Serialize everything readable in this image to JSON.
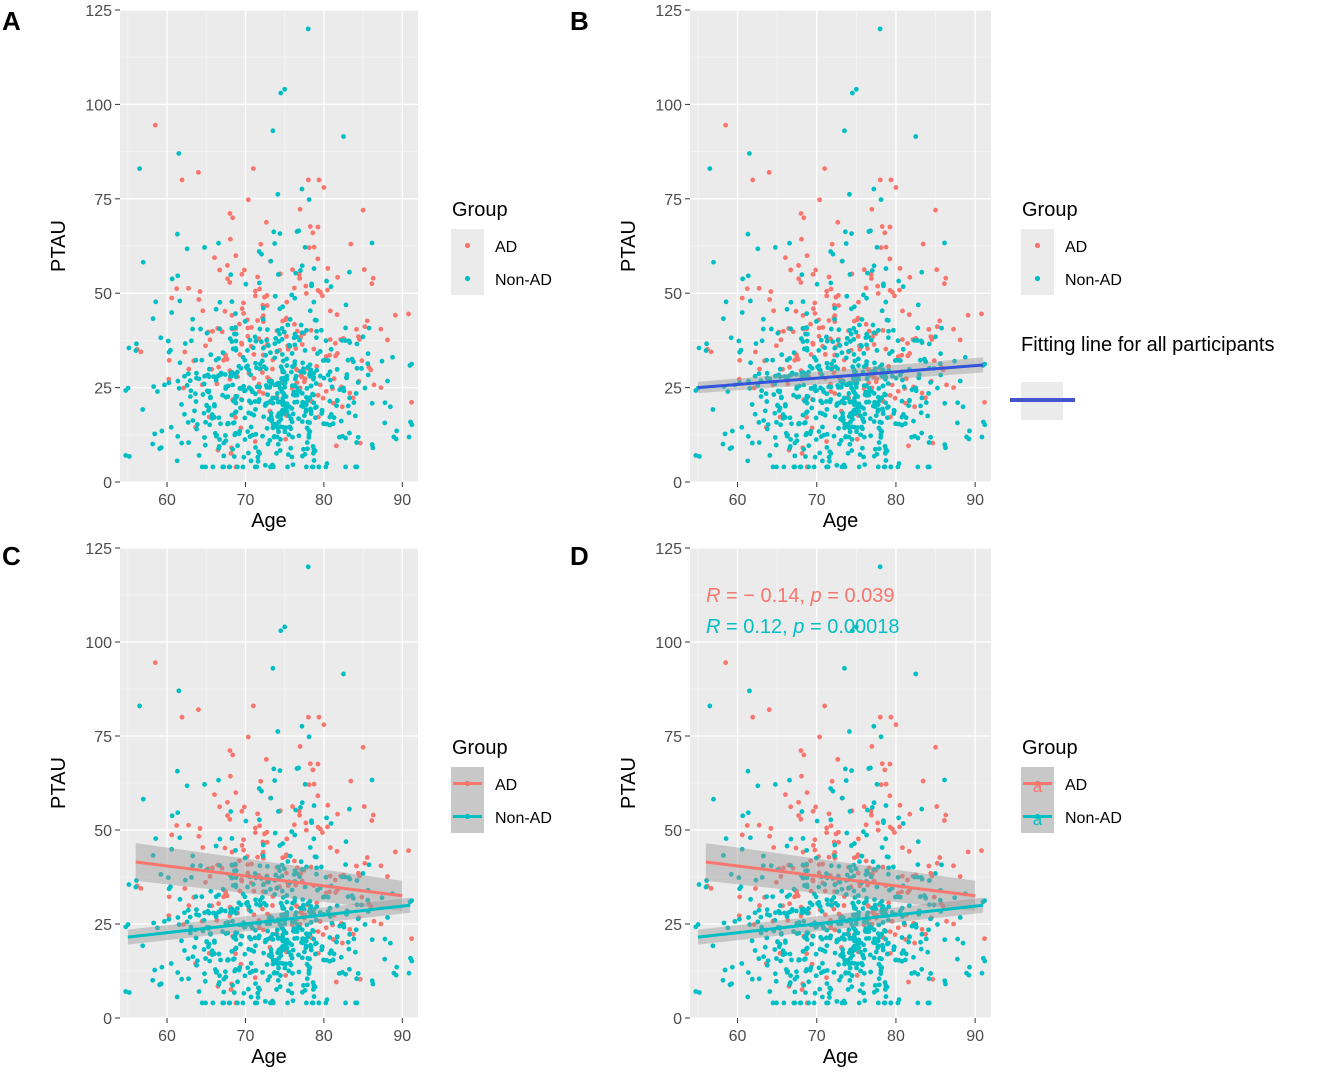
{
  "chart_data": [
    {
      "panel": "A",
      "type": "scatter",
      "xlabel": "Age",
      "ylabel": "PTAU",
      "xlim": [
        54,
        92
      ],
      "ylim": [
        0,
        125
      ],
      "xticks": [
        "60",
        "70",
        "80",
        "90"
      ],
      "yticks": [
        "0",
        "25",
        "50",
        "75",
        "100",
        "125"
      ],
      "legend": {
        "title": "Group",
        "position": "right",
        "entries": [
          "AD",
          "Non-AD"
        ],
        "style": "points"
      },
      "series": [
        {
          "name": "AD",
          "color": "#F8766D",
          "n_points": 220,
          "notable_points": [
            [
              58.5,
              94.5
            ],
            [
              64,
              82
            ],
            [
              71,
              83
            ],
            [
              80,
              78
            ],
            [
              85,
              72
            ]
          ]
        },
        {
          "name": "Non-AD",
          "color": "#00BFC4",
          "n_points": 600,
          "notable_points": [
            [
              78,
              120
            ],
            [
              75,
              104
            ],
            [
              74.5,
              103
            ],
            [
              73.5,
              93
            ],
            [
              82.5,
              91.5
            ],
            [
              61.5,
              87
            ],
            [
              56.5,
              83
            ]
          ]
        }
      ]
    },
    {
      "panel": "B",
      "type": "scatter",
      "xlabel": "Age",
      "ylabel": "PTAU",
      "xlim": [
        54,
        92
      ],
      "ylim": [
        0,
        125
      ],
      "xticks": [
        "60",
        "70",
        "80",
        "90"
      ],
      "yticks": [
        "0",
        "25",
        "50",
        "75",
        "100",
        "125"
      ],
      "legend": {
        "title": "Group",
        "position": "right",
        "entries": [
          "AD",
          "Non-AD"
        ],
        "style": "points"
      },
      "extra_legend": {
        "title": "Fitting line for all participants",
        "color": "#4455CC"
      },
      "series": [
        {
          "name": "AD",
          "color": "#F8766D",
          "n_points": 220
        },
        {
          "name": "Non-AD",
          "color": "#00BFC4",
          "n_points": 600
        }
      ],
      "fits": [
        {
          "name": "All participants",
          "color": "#3355DD",
          "x": [
            55,
            91
          ],
          "y": [
            25,
            31
          ],
          "ci": [
            [
              23.5,
              26.5
            ],
            [
              29,
              33
            ]
          ]
        }
      ]
    },
    {
      "panel": "C",
      "type": "scatter",
      "xlabel": "Age",
      "ylabel": "PTAU",
      "xlim": [
        54,
        92
      ],
      "ylim": [
        0,
        125
      ],
      "xticks": [
        "60",
        "70",
        "80",
        "90"
      ],
      "yticks": [
        "0",
        "25",
        "50",
        "75",
        "100",
        "125"
      ],
      "legend": {
        "title": "Group",
        "position": "right",
        "entries": [
          "AD",
          "Non-AD"
        ],
        "style": "lines"
      },
      "series": [
        {
          "name": "AD",
          "color": "#F8766D",
          "n_points": 220
        },
        {
          "name": "Non-AD",
          "color": "#00BFC4",
          "n_points": 600
        }
      ],
      "fits": [
        {
          "name": "AD",
          "color": "#F8766D",
          "x": [
            56,
            90
          ],
          "y": [
            41.5,
            32.5
          ],
          "ci": [
            [
              36.5,
              46.5
            ],
            [
              28.5,
              36.5
            ]
          ]
        },
        {
          "name": "Non-AD",
          "color": "#00BFC4",
          "x": [
            55,
            91
          ],
          "y": [
            21.5,
            30
          ],
          "ci": [
            [
              19.5,
              23.5
            ],
            [
              28,
              32
            ]
          ]
        }
      ]
    },
    {
      "panel": "D",
      "type": "scatter",
      "xlabel": "Age",
      "ylabel": "PTAU",
      "xlim": [
        54,
        92
      ],
      "ylim": [
        0,
        125
      ],
      "xticks": [
        "60",
        "70",
        "80",
        "90"
      ],
      "yticks": [
        "0",
        "25",
        "50",
        "75",
        "100",
        "125"
      ],
      "legend": {
        "title": "Group",
        "position": "right",
        "entries": [
          "AD",
          "Non-AD"
        ],
        "style": "lines-text"
      },
      "series": [
        {
          "name": "AD",
          "color": "#F8766D",
          "n_points": 220
        },
        {
          "name": "Non-AD",
          "color": "#00BFC4",
          "n_points": 600
        }
      ],
      "fits": [
        {
          "name": "AD",
          "color": "#F8766D",
          "x": [
            56,
            90
          ],
          "y": [
            41.5,
            32.5
          ],
          "ci": [
            [
              36.5,
              46.5
            ],
            [
              28.5,
              36.5
            ]
          ]
        },
        {
          "name": "Non-AD",
          "color": "#00BFC4",
          "x": [
            55,
            91
          ],
          "y": [
            21.5,
            30
          ],
          "ci": [
            [
              19.5,
              23.5
            ],
            [
              28,
              32
            ]
          ]
        }
      ],
      "annotations": [
        {
          "series": "AD",
          "color": "#F8766D",
          "r_label": "R",
          "r_text": " = − 0.14, ",
          "p_label": "p",
          "p_text": " = 0.039"
        },
        {
          "series": "Non-AD",
          "color": "#00BFC4",
          "r_label": "R",
          "r_text": " = 0.12, ",
          "p_label": "p",
          "p_text": " = 0.00018"
        }
      ]
    }
  ],
  "legend_glyph": "a"
}
